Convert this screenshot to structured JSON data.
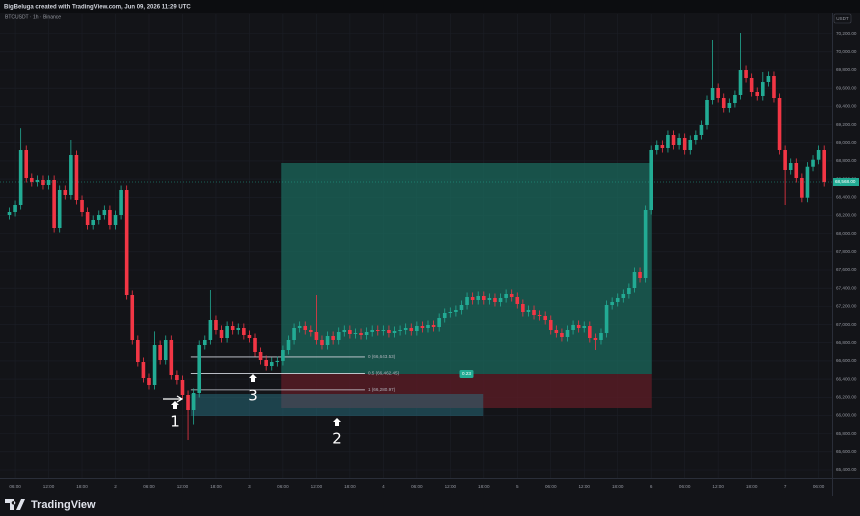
{
  "header": {
    "text": "BigBeluga created with TradingView.com, Jun 09, 2026 11:29 UTC"
  },
  "footer": {
    "brand": "TradingView"
  },
  "chart_data": {
    "type": "candlestick",
    "title": "BTCUSDT · 1h · Binance",
    "currency": "USDT",
    "up_color": "#22ab94",
    "down_color": "#f23645",
    "grid": true,
    "xlim": [
      3.3,
      152.4
    ],
    "ylim": [
      65312,
      70416
    ],
    "xticks": [
      {
        "value": 6,
        "label": "06:00"
      },
      {
        "value": 12,
        "label": "12:00"
      },
      {
        "value": 18,
        "label": "18:00"
      },
      {
        "value": 24,
        "label": "2"
      },
      {
        "value": 30,
        "label": "06:00"
      },
      {
        "value": 36,
        "label": "12:00"
      },
      {
        "value": 42,
        "label": "18:00"
      },
      {
        "value": 48,
        "label": "3"
      },
      {
        "value": 54,
        "label": "06:00"
      },
      {
        "value": 60,
        "label": "12:00"
      },
      {
        "value": 66,
        "label": "18:00"
      },
      {
        "value": 72,
        "label": "4"
      },
      {
        "value": 78,
        "label": "06:00"
      },
      {
        "value": 84,
        "label": "12:00"
      },
      {
        "value": 90,
        "label": "18:00"
      },
      {
        "value": 96,
        "label": "5"
      },
      {
        "value": 102,
        "label": "06:00"
      },
      {
        "value": 108,
        "label": "12:00"
      },
      {
        "value": 114,
        "label": "18:00"
      },
      {
        "value": 120,
        "label": "6"
      },
      {
        "value": 126,
        "label": "06:00"
      },
      {
        "value": 132,
        "label": "12:00"
      },
      {
        "value": 138,
        "label": "18:00"
      },
      {
        "value": 144,
        "label": "7"
      },
      {
        "value": 150,
        "label": "06:00"
      }
    ],
    "yticks": [
      {
        "value": 65400,
        "label": "65,400.00"
      },
      {
        "value": 65600,
        "label": "65,600.00"
      },
      {
        "value": 65800,
        "label": "65,800.00"
      },
      {
        "value": 66000,
        "label": "66,000.00"
      },
      {
        "value": 66200,
        "label": "66,200.00"
      },
      {
        "value": 66400,
        "label": "66,400.00"
      },
      {
        "value": 66600,
        "label": "66,600.00"
      },
      {
        "value": 66800,
        "label": "66,800.00"
      },
      {
        "value": 67000,
        "label": "67,000.00"
      },
      {
        "value": 67200,
        "label": "67,200.00"
      },
      {
        "value": 67400,
        "label": "67,400.00"
      },
      {
        "value": 67600,
        "label": "67,600.00"
      },
      {
        "value": 67800,
        "label": "67,800.00"
      },
      {
        "value": 68000,
        "label": "68,000.00"
      },
      {
        "value": 68200,
        "label": "68,200.00"
      },
      {
        "value": 68400,
        "label": "68,400.00"
      },
      {
        "value": 68600,
        "label": "68,600.00"
      },
      {
        "value": 68800,
        "label": "68,800.00"
      },
      {
        "value": 69000,
        "label": "69,000.00"
      },
      {
        "value": 69200,
        "label": "69,200.00"
      },
      {
        "value": 69400,
        "label": "69,400.00"
      },
      {
        "value": 69600,
        "label": "69,600.00"
      },
      {
        "value": 69800,
        "label": "69,800.00"
      },
      {
        "value": 70000,
        "label": "70,000.00"
      },
      {
        "value": 70200,
        "label": "70,200.00"
      }
    ],
    "x": [
      5,
      6,
      7,
      8,
      9,
      10,
      11,
      12,
      13,
      14,
      15,
      16,
      17,
      18,
      19,
      20,
      21,
      22,
      23,
      24,
      25,
      26,
      27,
      28,
      29,
      30,
      31,
      32,
      33,
      34,
      35,
      36,
      37,
      38,
      39,
      40,
      41,
      42,
      43,
      44,
      45,
      46,
      47,
      48,
      49,
      50,
      51,
      52,
      53,
      54,
      55,
      56,
      57,
      58,
      59,
      60,
      61,
      62,
      63,
      64,
      65,
      66,
      67,
      68,
      69,
      70,
      71,
      72,
      73,
      74,
      75,
      76,
      77,
      78,
      79,
      80,
      81,
      82,
      83,
      84,
      85,
      86,
      87,
      88,
      89,
      90,
      91,
      92,
      93,
      94,
      95,
      96,
      97,
      98,
      99,
      100,
      101,
      102,
      103,
      104,
      105,
      106,
      107,
      108,
      109,
      110,
      111,
      112,
      113,
      114,
      115,
      116,
      117,
      118,
      119,
      120,
      121,
      122,
      123,
      124,
      125,
      126,
      127,
      128,
      129,
      130,
      131,
      132,
      133,
      134,
      135,
      136,
      137,
      138,
      139,
      140,
      141,
      142,
      143,
      144,
      145,
      146,
      147,
      148,
      149,
      150,
      151
    ],
    "open": [
      68205,
      68238,
      68315,
      68920,
      68612,
      68568,
      68590,
      68535,
      68590,
      68062,
      68480,
      68425,
      68865,
      68370,
      68238,
      68095,
      68150,
      68205,
      68260,
      68095,
      68205,
      68480,
      67325,
      66830,
      66588,
      66412,
      66335,
      66775,
      66610,
      66830,
      66445,
      66390,
      66225,
      66060,
      66247,
      66775,
      66830,
      67050,
      66940,
      66852,
      66984,
      66940,
      66962,
      66885,
      66852,
      66698,
      66610,
      66544,
      66588,
      66600,
      66720,
      66830,
      66962,
      66984,
      66940,
      66918,
      66830,
      66775,
      66874,
      66830,
      66918,
      66940,
      66896,
      66907,
      66885,
      66918,
      66940,
      66929,
      66940,
      66907,
      66929,
      66940,
      66962,
      66929,
      66984,
      66962,
      66995,
      66973,
      67072,
      67127,
      67138,
      67160,
      67215,
      67303,
      67270,
      67314,
      67270,
      67292,
      67248,
      67292,
      67336,
      67303,
      67226,
      67138,
      67160,
      67105,
      67094,
      67050,
      66940,
      66907,
      66863,
      66940,
      66995,
      66962,
      66984,
      66852,
      66830,
      66907,
      67215,
      67248,
      67292,
      67336,
      67402,
      67578,
      67512,
      68260,
      68920,
      68975,
      68942,
      69085,
      68975,
      69052,
      68920,
      69030,
      69085,
      69195,
      69470,
      69602,
      69492,
      69382,
      69437,
      69525,
      69800,
      69712,
      69558,
      69514,
      69668,
      69734,
      69492,
      68920,
      68700,
      68777,
      68612,
      68395,
      68736,
      68813,
      68920
    ],
    "high": [
      68288,
      68365,
      69160,
      68970,
      68662,
      68640,
      68640,
      68640,
      68640,
      68530,
      68530,
      69030,
      68915,
      68420,
      68288,
      68200,
      68255,
      68310,
      68310,
      68255,
      68530,
      68530,
      67375,
      66880,
      66638,
      66462,
      66925,
      66825,
      66880,
      66880,
      66495,
      66440,
      66275,
      66297,
      66825,
      66880,
      67380,
      67100,
      66990,
      67034,
      67034,
      67012,
      67012,
      66935,
      66902,
      66748,
      66660,
      66638,
      66650,
      66770,
      66880,
      67012,
      67034,
      67034,
      66990,
      67325,
      66880,
      66924,
      66924,
      66968,
      66990,
      66990,
      66957,
      66957,
      66968,
      66990,
      66990,
      66990,
      66990,
      66979,
      66990,
      67012,
      67012,
      67034,
      67034,
      67045,
      67045,
      67122,
      67177,
      67188,
      67210,
      67265,
      67353,
      67353,
      67364,
      67364,
      67342,
      67342,
      67342,
      67386,
      67386,
      67353,
      67276,
      67210,
      67210,
      67155,
      67144,
      67100,
      66990,
      66957,
      66990,
      67045,
      67045,
      67034,
      67034,
      66902,
      66957,
      67265,
      67298,
      67342,
      67386,
      67452,
      67628,
      67628,
      68310,
      68970,
      69025,
      69025,
      69135,
      69135,
      69102,
      69102,
      69080,
      69135,
      69245,
      69520,
      70130,
      69652,
      69542,
      69487,
      69575,
      70207,
      69850,
      69762,
      69608,
      69778,
      69784,
      69784,
      69542,
      68970,
      68827,
      68827,
      68662,
      68786,
      68863,
      68970,
      68970
    ],
    "low": [
      68155,
      68188,
      68265,
      68562,
      68518,
      68518,
      68485,
      68485,
      68012,
      68012,
      68375,
      68375,
      68320,
      68188,
      68045,
      68045,
      68100,
      68155,
      68045,
      68045,
      68155,
      67275,
      66780,
      66538,
      66362,
      66285,
      66285,
      66560,
      66560,
      66395,
      66340,
      66175,
      65730,
      65900,
      66197,
      66725,
      66780,
      66890,
      66802,
      66802,
      66890,
      66890,
      66835,
      66802,
      66648,
      66560,
      66494,
      66494,
      66538,
      66550,
      66670,
      66780,
      66912,
      66890,
      66868,
      66780,
      66725,
      66725,
      66780,
      66780,
      66868,
      66846,
      66846,
      66835,
      66835,
      66868,
      66879,
      66879,
      66857,
      66857,
      66879,
      66890,
      66879,
      66879,
      66912,
      66912,
      66923,
      66923,
      67022,
      67077,
      67088,
      67110,
      67165,
      67220,
      67220,
      67220,
      67220,
      67198,
      67198,
      67242,
      67253,
      67176,
      67088,
      67088,
      67055,
      67044,
      67000,
      66890,
      66857,
      66813,
      66813,
      66890,
      66912,
      66912,
      66802,
      66720,
      66780,
      66857,
      67165,
      67198,
      67242,
      67286,
      67352,
      67462,
      67462,
      68210,
      68870,
      68892,
      68892,
      68925,
      68925,
      68870,
      68870,
      68980,
      69035,
      69145,
      69420,
      69442,
      69332,
      69332,
      69387,
      69475,
      69662,
      69508,
      69464,
      69464,
      69618,
      69442,
      68870,
      68315,
      68650,
      68562,
      68345,
      68345,
      68686,
      68763,
      68518
    ],
    "close": [
      68238,
      68315,
      68920,
      68612,
      68568,
      68590,
      68535,
      68590,
      68062,
      68480,
      68425,
      68865,
      68370,
      68238,
      68095,
      68150,
      68205,
      68260,
      68095,
      68205,
      68480,
      67325,
      66830,
      66588,
      66412,
      66335,
      66775,
      66610,
      66830,
      66445,
      66390,
      66225,
      66060,
      66247,
      66775,
      66830,
      67050,
      66940,
      66852,
      66984,
      66940,
      66962,
      66885,
      66852,
      66698,
      66610,
      66544,
      66588,
      66600,
      66720,
      66830,
      66962,
      66984,
      66940,
      66918,
      66830,
      66775,
      66874,
      66830,
      66918,
      66940,
      66896,
      66907,
      66885,
      66918,
      66940,
      66929,
      66940,
      66907,
      66929,
      66940,
      66962,
      66929,
      66984,
      66962,
      66995,
      66973,
      67072,
      67127,
      67138,
      67160,
      67215,
      67303,
      67270,
      67314,
      67270,
      67292,
      67248,
      67292,
      67336,
      67303,
      67226,
      67138,
      67160,
      67105,
      67094,
      67050,
      66940,
      66907,
      66863,
      66940,
      66995,
      66962,
      66984,
      66852,
      66830,
      66907,
      67215,
      67248,
      67292,
      67336,
      67402,
      67578,
      67512,
      68260,
      68920,
      68975,
      68942,
      69085,
      68975,
      69052,
      68920,
      69030,
      69085,
      69195,
      69470,
      69602,
      69492,
      69382,
      69437,
      69525,
      69800,
      69712,
      69558,
      69514,
      69668,
      69734,
      69492,
      68920,
      68700,
      68777,
      68612,
      68395,
      68736,
      68813,
      68920,
      68568
    ],
    "last_price_label": "68,568.00",
    "position": {
      "x_start": 53.7,
      "x_end": 120.1,
      "entry": 66456,
      "target": 68777,
      "stop": 66082,
      "label": "0.23"
    },
    "zone": {
      "x_start": 37.5,
      "x_end": 89.9,
      "top": 66236,
      "bottom": 65994
    },
    "fib": {
      "x_start": 37.5,
      "x_end": 68.7,
      "levels": [
        {
          "price": 66643.53,
          "label": "0 (66,643.53)"
        },
        {
          "price": 66462.45,
          "label": "0.5 (66,462.45)"
        },
        {
          "price": 66280.97,
          "label": "1 (66,280.97)"
        }
      ]
    },
    "annotations": [
      "1",
      "2",
      "3"
    ]
  }
}
